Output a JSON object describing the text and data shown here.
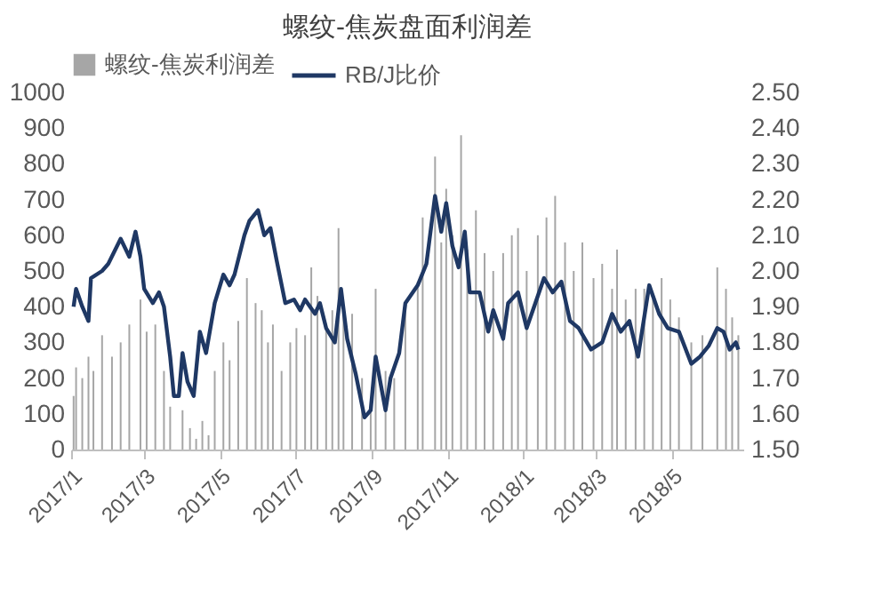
{
  "chart_data": {
    "type": "bar",
    "title": "螺纹-焦炭盘面利润差",
    "xlim": [
      "2017-01-01",
      "2018-06-28"
    ],
    "xticks": [
      {
        "value": "2017-01-01",
        "label": "2017/1"
      },
      {
        "value": "2017-03-01",
        "label": "2017/3"
      },
      {
        "value": "2017-05-01",
        "label": "2017/5"
      },
      {
        "value": "2017-07-01",
        "label": "2017/7"
      },
      {
        "value": "2017-09-01",
        "label": "2017/9"
      },
      {
        "value": "2017-11-01",
        "label": "2017/11"
      },
      {
        "value": "2018-01-01",
        "label": "2018/1"
      },
      {
        "value": "2018-03-01",
        "label": "2018/3"
      },
      {
        "value": "2018-05-01",
        "label": "2018/5"
      }
    ],
    "ylim": [
      0,
      1000
    ],
    "yticks": [
      0,
      100,
      200,
      300,
      400,
      500,
      600,
      700,
      800,
      900,
      1000
    ],
    "y2lim": [
      1.5,
      2.5
    ],
    "y2ticks": [
      {
        "value": 1.5,
        "label": "1.50"
      },
      {
        "value": 1.6,
        "label": "1.60"
      },
      {
        "value": 1.7,
        "label": "1.70"
      },
      {
        "value": 1.8,
        "label": "1.80"
      },
      {
        "value": 1.9,
        "label": "1.90"
      },
      {
        "value": 2.0,
        "label": "2.00"
      },
      {
        "value": 2.1,
        "label": "2.10"
      },
      {
        "value": 2.2,
        "label": "2.20"
      },
      {
        "value": 2.3,
        "label": "2.30"
      },
      {
        "value": 2.4,
        "label": "2.40"
      },
      {
        "value": 2.5,
        "label": "2.50"
      }
    ],
    "legend": "top",
    "grid": false,
    "series": [
      {
        "name": "螺纹-焦炭利润差",
        "color": "#a6a6a6",
        "x": [
          "2017-01-03",
          "2017-01-05",
          "2017-01-10",
          "2017-01-15",
          "2017-01-19",
          "2017-01-26",
          "2017-02-03",
          "2017-02-10",
          "2017-02-17",
          "2017-02-26",
          "2017-03-03",
          "2017-03-10",
          "2017-03-17",
          "2017-03-22",
          "2017-03-28",
          "2017-04-01",
          "2017-04-07",
          "2017-04-12",
          "2017-04-17",
          "2017-04-22",
          "2017-04-27",
          "2017-05-04",
          "2017-05-09",
          "2017-05-16",
          "2017-05-23",
          "2017-05-30",
          "2017-06-04",
          "2017-06-09",
          "2017-06-13",
          "2017-06-20",
          "2017-06-27",
          "2017-07-02",
          "2017-07-09",
          "2017-07-14",
          "2017-07-19",
          "2017-07-26",
          "2017-07-31",
          "2017-08-05",
          "2017-08-09",
          "2017-08-16",
          "2017-08-24",
          "2017-08-31",
          "2017-09-04",
          "2017-09-12",
          "2017-09-19",
          "2017-09-28",
          "2017-10-08",
          "2017-10-12",
          "2017-10-22",
          "2017-10-27",
          "2017-10-31",
          "2017-11-05",
          "2017-11-12",
          "2017-11-17",
          "2017-11-24",
          "2017-12-01",
          "2017-12-08",
          "2017-12-16",
          "2017-12-23",
          "2017-12-28",
          "2018-01-04",
          "2018-01-13",
          "2018-01-20",
          "2018-01-27",
          "2018-02-04",
          "2018-02-11",
          "2018-02-18",
          "2018-02-27",
          "2018-03-06",
          "2018-03-14",
          "2018-03-18",
          "2018-03-25",
          "2018-04-02",
          "2018-04-09",
          "2018-04-16",
          "2018-04-23",
          "2018-04-30",
          "2018-05-07",
          "2018-05-17",
          "2018-05-26",
          "2018-06-07",
          "2018-06-14",
          "2018-06-19",
          "2018-06-24"
        ],
        "values": [
          150,
          230,
          200,
          260,
          220,
          320,
          260,
          300,
          350,
          420,
          330,
          350,
          220,
          120,
          0,
          110,
          60,
          30,
          80,
          40,
          220,
          300,
          250,
          360,
          480,
          410,
          390,
          300,
          350,
          220,
          300,
          340,
          320,
          510,
          430,
          350,
          390,
          620,
          400,
          380,
          200,
          130,
          450,
          220,
          200,
          400,
          470,
          650,
          820,
          580,
          730,
          600,
          880,
          560,
          670,
          550,
          500,
          550,
          600,
          620,
          500,
          600,
          650,
          710,
          580,
          500,
          580,
          480,
          520,
          450,
          560,
          420,
          450,
          450,
          420,
          480,
          420,
          370,
          300,
          320,
          510,
          450,
          370,
          320
        ]
      },
      {
        "name": "RB/J比价",
        "type": "line",
        "axis": "y2",
        "color": "#1f3864",
        "x": [
          "2017-01-03",
          "2017-01-05",
          "2017-01-10",
          "2017-01-15",
          "2017-01-17",
          "2017-01-26",
          "2017-01-31",
          "2017-02-10",
          "2017-02-17",
          "2017-02-22",
          "2017-02-26",
          "2017-03-01",
          "2017-03-08",
          "2017-03-13",
          "2017-03-17",
          "2017-03-22",
          "2017-03-25",
          "2017-03-29",
          "2017-04-01",
          "2017-04-05",
          "2017-04-10",
          "2017-04-15",
          "2017-04-20",
          "2017-04-27",
          "2017-05-04",
          "2017-05-09",
          "2017-05-13",
          "2017-05-21",
          "2017-05-25",
          "2017-06-01",
          "2017-06-06",
          "2017-06-11",
          "2017-06-16",
          "2017-06-23",
          "2017-06-30",
          "2017-07-05",
          "2017-07-09",
          "2017-07-17",
          "2017-07-21",
          "2017-07-26",
          "2017-08-02",
          "2017-08-07",
          "2017-08-12",
          "2017-08-19",
          "2017-08-26",
          "2017-08-31",
          "2017-09-04",
          "2017-09-12",
          "2017-09-16",
          "2017-09-23",
          "2017-09-28",
          "2017-10-08",
          "2017-10-15",
          "2017-10-22",
          "2017-10-27",
          "2017-10-31",
          "2017-11-05",
          "2017-11-10",
          "2017-11-15",
          "2017-11-19",
          "2017-11-27",
          "2017-12-04",
          "2017-12-08",
          "2017-12-16",
          "2017-12-20",
          "2017-12-28",
          "2018-01-04",
          "2018-01-11",
          "2018-01-18",
          "2018-01-25",
          "2018-02-01",
          "2018-02-08",
          "2018-02-15",
          "2018-02-25",
          "2018-03-06",
          "2018-03-14",
          "2018-03-21",
          "2018-03-28",
          "2018-04-04",
          "2018-04-13",
          "2018-04-21",
          "2018-04-28",
          "2018-05-07",
          "2018-05-17",
          "2018-05-24",
          "2018-05-31",
          "2018-06-07",
          "2018-06-12",
          "2018-06-17",
          "2018-06-22",
          "2018-06-24"
        ],
        "values": [
          1.9,
          1.95,
          1.9,
          1.86,
          1.98,
          2.0,
          2.02,
          2.09,
          2.04,
          2.11,
          2.04,
          1.95,
          1.91,
          1.94,
          1.9,
          1.76,
          1.65,
          1.65,
          1.77,
          1.69,
          1.65,
          1.83,
          1.77,
          1.91,
          1.99,
          1.96,
          1.99,
          2.1,
          2.14,
          2.17,
          2.1,
          2.12,
          2.03,
          1.91,
          1.92,
          1.89,
          1.92,
          1.88,
          1.91,
          1.84,
          1.8,
          1.95,
          1.81,
          1.71,
          1.59,
          1.61,
          1.76,
          1.61,
          1.7,
          1.77,
          1.91,
          1.96,
          2.02,
          2.21,
          2.11,
          2.19,
          2.07,
          2.01,
          2.11,
          1.94,
          1.94,
          1.83,
          1.89,
          1.81,
          1.91,
          1.94,
          1.84,
          1.91,
          1.98,
          1.94,
          1.97,
          1.86,
          1.84,
          1.78,
          1.8,
          1.88,
          1.83,
          1.86,
          1.76,
          1.96,
          1.88,
          1.84,
          1.83,
          1.74,
          1.76,
          1.79,
          1.84,
          1.83,
          1.78,
          1.8,
          1.78
        ]
      }
    ]
  }
}
